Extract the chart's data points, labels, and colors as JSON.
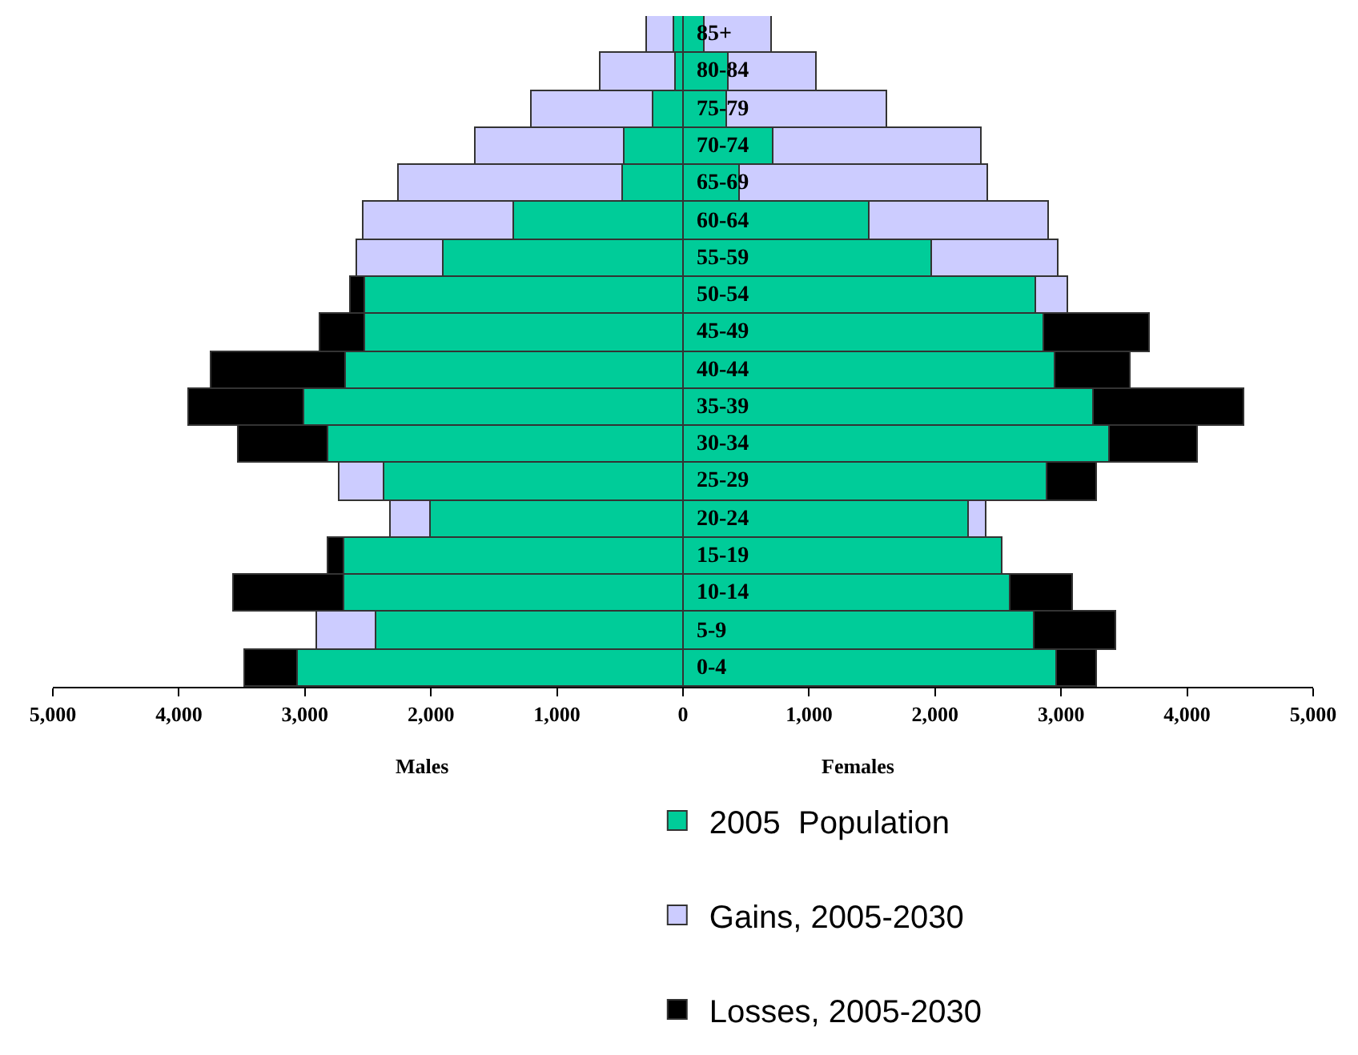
{
  "chart_data": {
    "type": "bar",
    "orientation": "horizontal",
    "stacked": true,
    "categories": [
      "85+",
      "80-84",
      "75-79",
      "70-74",
      "65-69",
      "60-64",
      "55-59",
      "50-54",
      "45-49",
      "40-44",
      "35-39",
      "30-34",
      "25-29",
      "20-24",
      "15-19",
      "10-14",
      "5-9",
      "0-4"
    ],
    "series": [
      {
        "name": "2005  Population",
        "color": "#00cc99",
        "values": [
          -70,
          -60,
          -230,
          -460,
          -480,
          -1340,
          -1900,
          -2520,
          -2520,
          -2680,
          -3000,
          -2810,
          -2370,
          -2000,
          -2690,
          -2690,
          -2430,
          -3060
        ]
      },
      {
        "name": "Gains, 2005-2030",
        "color": "#ccccff",
        "values": [
          -210,
          -600,
          -970,
          -1180,
          -1770,
          -1190,
          -690,
          null,
          null,
          null,
          null,
          null,
          -350,
          -320,
          null,
          null,
          -470,
          null
        ]
      },
      {
        "name": "Losses, 2005-2030",
        "color": "#000000",
        "values": [
          null,
          null,
          null,
          null,
          null,
          null,
          null,
          -120,
          -360,
          -1060,
          -920,
          -720,
          null,
          null,
          -120,
          -880,
          null,
          -410
        ]
      },
      {
        "color": "#00cc99",
        "values": [
          170,
          360,
          350,
          720,
          450,
          1480,
          1980,
          2800,
          2870,
          2950,
          3260,
          3390,
          2890,
          2270,
          2530,
          2600,
          2790,
          2970
        ]
      },
      {
        "color": "#ccccff",
        "values": [
          530,
          700,
          1270,
          1650,
          1970,
          1420,
          1000,
          260,
          null,
          null,
          null,
          null,
          null,
          140,
          null,
          null,
          null,
          null
        ]
      },
      {
        "color": "#000000",
        "values": [
          null,
          null,
          null,
          null,
          null,
          null,
          null,
          null,
          840,
          600,
          1190,
          690,
          400,
          null,
          null,
          490,
          650,
          320
        ]
      }
    ],
    "xlim": [
      -5000,
      5000
    ],
    "xticks": [
      {
        "value": -5000,
        "label": "5,000"
      },
      {
        "value": -4000,
        "label": "4,000"
      },
      {
        "value": -3000,
        "label": "3,000"
      },
      {
        "value": -2000,
        "label": "2,000"
      },
      {
        "value": -1000,
        "label": "1,000"
      },
      0,
      {
        "value": 1000,
        "label": "1,000"
      },
      {
        "value": 2000,
        "label": "2,000"
      },
      {
        "value": 3000,
        "label": "3,000"
      },
      {
        "value": 4000,
        "label": "4,000"
      },
      {
        "value": 5000,
        "label": "5,000"
      }
    ],
    "annotations": [
      "Males",
      "Females"
    ],
    "grid": false,
    "legend": "bottom"
  }
}
